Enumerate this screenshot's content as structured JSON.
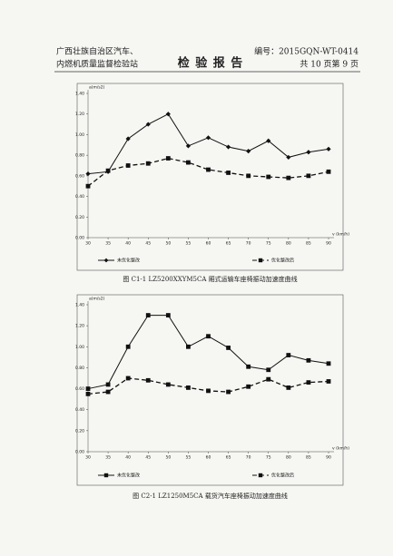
{
  "header": {
    "org_line1": "广西壮族自治区汽车、",
    "org_line2": "内燃机质量监督检验站",
    "title": "检 验 报 告",
    "number": "编号：2015GQN-WT-0414",
    "page": "共 10 页第 9 页"
  },
  "chart_data": [
    {
      "type": "line",
      "title": "图 C1-1   LZ5200XXYM5CA 厢式运输车座椅振动加速度曲线",
      "y_label": "a(m/s2)",
      "x_label": "v (km/h)",
      "x": [
        30,
        35,
        40,
        45,
        50,
        55,
        60,
        65,
        70,
        75,
        80,
        85,
        90
      ],
      "xlim": [
        30,
        90
      ],
      "xticks": [
        30,
        35,
        40,
        45,
        50,
        55,
        60,
        65,
        70,
        75,
        80,
        85,
        90
      ],
      "ylim": [
        0,
        1.4
      ],
      "yticks": [
        {
          "value": 0,
          "label": "0.00"
        },
        {
          "value": 0.2,
          "label": "0.20"
        },
        {
          "value": 0.4,
          "label": "0.40"
        },
        {
          "value": 0.6,
          "label": "0.60"
        },
        {
          "value": 0.8,
          "label": "0.80"
        },
        {
          "value": 1.0,
          "label": "1.00"
        },
        {
          "value": 1.2,
          "label": "1.20"
        },
        {
          "value": 1.4,
          "label": "1.40"
        }
      ],
      "series": [
        {
          "name": "未优化整改",
          "color": "#111111",
          "marker": "diamond",
          "dashed": false,
          "values": [
            0.62,
            0.64,
            0.96,
            1.1,
            1.2,
            0.89,
            0.97,
            0.88,
            0.84,
            0.94,
            0.78,
            0.83,
            0.86
          ]
        },
        {
          "name": "优化整改后",
          "color": "#111111",
          "marker": "square",
          "dashed": true,
          "values": [
            0.5,
            0.65,
            0.7,
            0.72,
            0.77,
            0.73,
            0.66,
            0.63,
            0.6,
            0.59,
            0.58,
            0.6,
            0.64
          ]
        }
      ]
    },
    {
      "type": "line",
      "title": "图 C2-1   LZ1250M5CA 载货汽车座椅振动加速度曲线",
      "y_label": "a(m/s2)",
      "x_label": "v (km/h)",
      "x": [
        30,
        35,
        40,
        45,
        50,
        55,
        60,
        65,
        70,
        75,
        80,
        85,
        90
      ],
      "xlim": [
        30,
        90
      ],
      "xticks": [
        30,
        35,
        40,
        45,
        50,
        55,
        60,
        65,
        70,
        75,
        80,
        85,
        90
      ],
      "ylim": [
        0,
        1.4
      ],
      "yticks": [
        {
          "value": 0,
          "label": "0.00"
        },
        {
          "value": 0.2,
          "label": "0.20"
        },
        {
          "value": 0.4,
          "label": "0.40"
        },
        {
          "value": 0.6,
          "label": "0.60"
        },
        {
          "value": 0.8,
          "label": "0.80"
        },
        {
          "value": 1.0,
          "label": "1.00"
        },
        {
          "value": 1.2,
          "label": "1.20"
        },
        {
          "value": 1.4,
          "label": "1.40"
        }
      ],
      "series": [
        {
          "name": "未优化整改",
          "color": "#111111",
          "marker": "square",
          "dashed": false,
          "values": [
            0.6,
            0.64,
            1.0,
            1.3,
            1.3,
            1.0,
            1.1,
            0.99,
            0.81,
            0.78,
            0.92,
            0.87,
            0.84
          ]
        },
        {
          "name": "优化整改后",
          "color": "#111111",
          "marker": "square",
          "dashed": true,
          "values": [
            0.55,
            0.57,
            0.7,
            0.68,
            0.64,
            0.61,
            0.58,
            0.57,
            0.62,
            0.69,
            0.61,
            0.66,
            0.67
          ]
        }
      ]
    }
  ]
}
